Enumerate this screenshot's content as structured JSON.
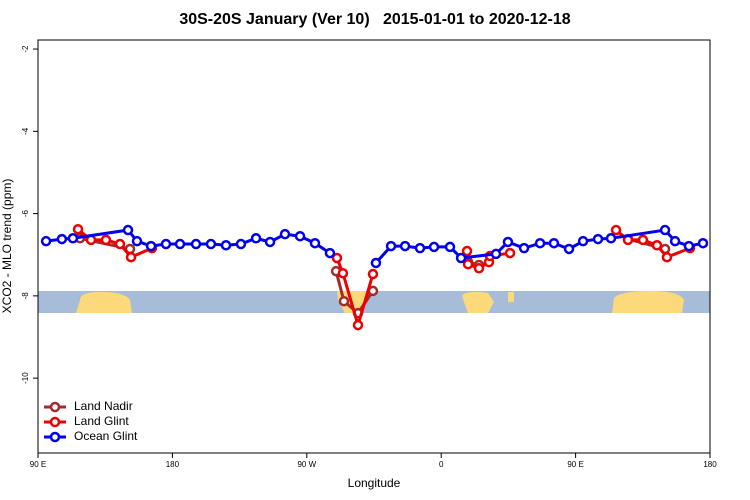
{
  "chart_data": {
    "type": "line",
    "title": "30S-20S January (Ver 10)   2015-01-01 to 2020-12-18",
    "x_label": "Longitude",
    "y_label": "XCO2 - MLO trend (ppm)",
    "xlim": [
      90,
      540
    ],
    "ylim": [
      -11.82,
      -1.78
    ],
    "xticks": [
      {
        "value": 90,
        "label": "90 E"
      },
      180,
      {
        "value": 270,
        "label": "90 W"
      },
      {
        "value": 360,
        "label": "0"
      },
      {
        "value": 450,
        "label": "90 E"
      },
      {
        "value": 540,
        "label": "180"
      }
    ],
    "yticks": [
      -2,
      -4,
      -6,
      -8,
      -10
    ],
    "legend": "bottom-left",
    "series": [
      {
        "name": "Land Nadir",
        "color": "#a52a2a",
        "x": [
          118.1,
          151.6,
          null,
          289.6,
          294.9,
          304.3,
          314.3,
          null,
          378,
          385.3,
          null,
          485.1,
          509.9
        ],
        "values": [
          -6.6,
          -6.86,
          null,
          -7.4,
          -8.13,
          -8.42,
          -7.88,
          null,
          -7.18,
          -7.25,
          null,
          -6.62,
          -6.86
        ]
      },
      {
        "name": "Land Glint",
        "color": "#ee0000",
        "x": [
          116.8,
          125.5,
          135.5,
          144.9,
          152.3,
          166.3,
          null,
          290.2,
          294.2,
          304.3,
          314.3,
          null,
          377.3,
          378,
          385.3,
          392,
          392.7,
          406.1,
          null,
          477.1,
          485.1,
          495.1,
          504.5,
          511.2,
          526.6
        ],
        "values": [
          -6.38,
          -6.64,
          -6.64,
          -6.74,
          -7.06,
          -6.84,
          null,
          -7.08,
          -7.45,
          -8.71,
          -7.47,
          null,
          -6.91,
          -7.23,
          -7.33,
          -7.18,
          -7.03,
          -6.96,
          null,
          -6.4,
          -6.64,
          -6.64,
          -6.77,
          -7.06,
          -6.84
        ]
      },
      {
        "name": "Ocean Glint",
        "color": "#0000ee",
        "x": [
          95.4,
          106,
          113.4,
          150.3,
          156.3,
          165.7,
          175.7,
          185.1,
          195.8,
          205.8,
          215.9,
          225.9,
          236,
          245.4,
          255.4,
          265.5,
          275.5,
          285.5,
          null,
          316.3,
          326.4,
          335.8,
          345.8,
          355.2,
          365.9,
          373.3,
          396.7,
          404.7,
          415.5,
          426.2,
          435.5,
          445.6,
          455,
          465,
          473.7,
          509.9,
          516.6,
          525.9,
          535.3
        ],
        "values": [
          -6.67,
          -6.62,
          -6.6,
          -6.4,
          -6.67,
          -6.79,
          -6.74,
          -6.74,
          -6.74,
          -6.74,
          -6.77,
          -6.74,
          -6.6,
          -6.69,
          -6.5,
          -6.55,
          -6.72,
          -6.96,
          null,
          -7.2,
          -6.79,
          -6.79,
          -6.84,
          -6.81,
          -6.81,
          -7.08,
          -6.98,
          -6.69,
          -6.84,
          -6.72,
          -6.72,
          -6.86,
          -6.67,
          -6.62,
          -6.6,
          -6.4,
          -6.67,
          -6.79,
          -6.72
        ]
      }
    ]
  }
}
